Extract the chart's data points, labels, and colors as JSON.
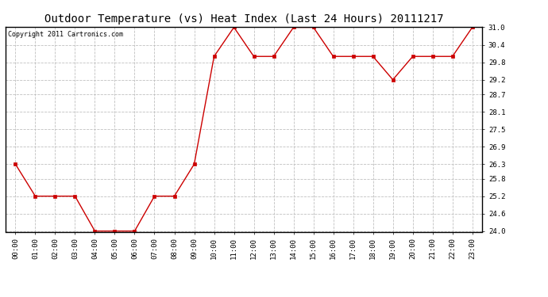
{
  "title": "Outdoor Temperature (vs) Heat Index (Last 24 Hours) 20111217",
  "copyright_text": "Copyright 2011 Cartronics.com",
  "x_labels": [
    "00:00",
    "01:00",
    "02:00",
    "03:00",
    "04:00",
    "05:00",
    "06:00",
    "07:00",
    "08:00",
    "09:00",
    "10:00",
    "11:00",
    "12:00",
    "13:00",
    "14:00",
    "15:00",
    "16:00",
    "17:00",
    "18:00",
    "19:00",
    "20:00",
    "21:00",
    "22:00",
    "23:00"
  ],
  "y_values": [
    26.3,
    25.2,
    25.2,
    25.2,
    24.0,
    24.0,
    24.0,
    25.2,
    25.2,
    26.3,
    30.0,
    31.0,
    30.0,
    30.0,
    31.0,
    31.0,
    30.0,
    30.0,
    30.0,
    29.2,
    30.0,
    30.0,
    30.0,
    31.0
  ],
  "line_color": "#cc0000",
  "marker": "s",
  "marker_size": 2.5,
  "background_color": "#ffffff",
  "grid_color": "#c0c0c0",
  "ylim_min": 24.0,
  "ylim_max": 31.0,
  "yticks": [
    24.0,
    24.6,
    25.2,
    25.8,
    26.3,
    26.9,
    27.5,
    28.1,
    28.7,
    29.2,
    29.8,
    30.4,
    31.0
  ],
  "title_fontsize": 10,
  "tick_fontsize": 6.5,
  "copyright_fontsize": 6
}
